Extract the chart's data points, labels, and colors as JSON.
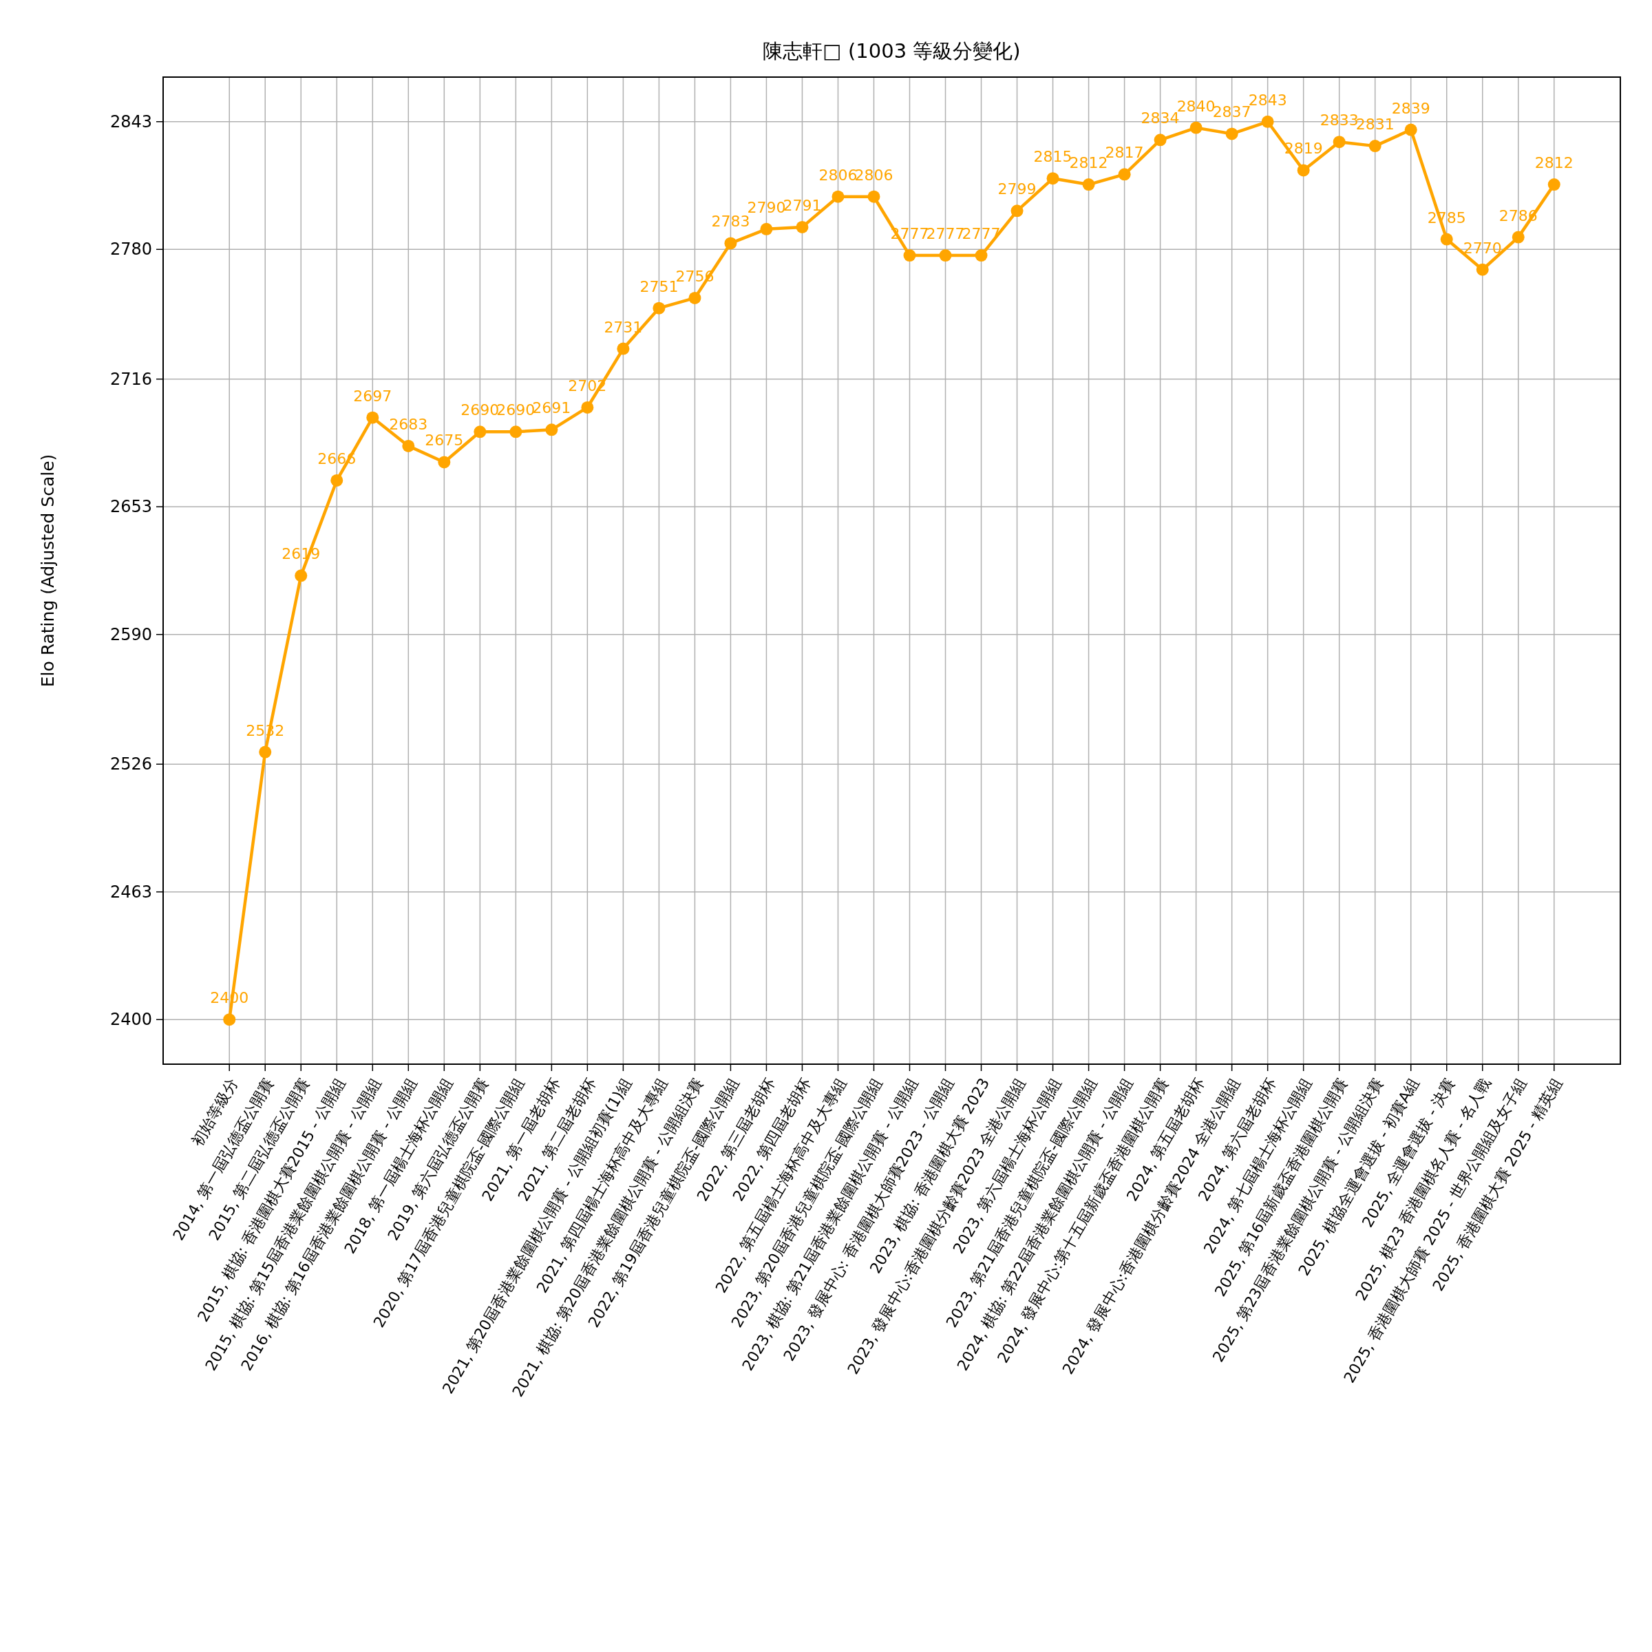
{
  "chart_data": {
    "type": "line",
    "title": "陳志軒□ (1003 等級分變化)",
    "ylabel": "Elo Rating (Adjusted Scale)",
    "categories": [
      "初始等級分",
      "2014, 第一屆弘德盃公開賽",
      "2015, 第二屆弘德盃公開賽",
      "2015, 棋協: 香港圍棋大賽2015 - 公開組",
      "2015, 棋協: 第15屆香港業餘圍棋公開賽 - 公開組",
      "2016, 棋協: 第16屆香港業餘圍棋公開賽 - 公開組",
      "2018, 第一屆楊士海杯公開組",
      "2019, 第六屆弘德盃公開賽",
      "2020, 第17屆香港兒童棋院盃-國際公開組",
      "2021, 第一屆老胡杯",
      "2021, 第二屆老胡杯",
      "2021, 第20屆香港業餘圍棋公開賽 - 公開組初賽(1)組",
      "2021, 第四屆楊士海杯高中及大專組",
      "2021, 棋協: 第20屆香港業餘圍棋公開賽 - 公開組決賽",
      "2022, 第19屆香港兒童棋院盃-國際公開組",
      "2022, 第三屆老胡杯",
      "2022, 第四屆老胡杯",
      "2022, 第五屆楊士海杯高中及大專組",
      "2023, 第20屆香港兒童棋院盃-國際公開組",
      "2023, 棋協: 第21屆香港業餘圍棋公開賽 - 公開組",
      "2023, 發展中心: 香港圍棋大師賽2023 - 公開組",
      "2023, 棋協: 香港圍棋大賽 2023",
      "2023, 發展中心:香港圍棋分齡賽2023 全港公開組",
      "2023, 第六屆楊士海杯公開組",
      "2023, 第21屆香港兒童棋院盃-國際公開組",
      "2024, 棋協: 第22屆香港業餘圍棋公開賽 - 公開組",
      "2024, 發展中心:第十五屆新歲盃香港圍棋公開賽",
      "2024, 第五屆老胡杯",
      "2024, 發展中心:香港圍棋分齡賽2024 全港公開組",
      "2024, 第六屆老胡杯",
      "2024, 第七屆楊士海杯公開組",
      "2025, 第16屆新歲盃香港圍棋公開賽",
      "2025, 第23屆香港業餘圍棋公開賽 - 公開組決賽",
      "2025, 棋協全運會選拔 - 初賽A組",
      "2025, 全運會選拔 - 決賽",
      "2025, 棋23  香港圍棋名人賽 - 名人戰",
      "2025, 香港圍棋大師賽 2025 - 世界公開組及女子組",
      "2025, 香港圍棋大賽 2025 - 精英組"
    ],
    "series": [
      {
        "color": "#ffa500",
        "values": [
          2400,
          2532,
          2619,
          2666,
          2697,
          2683,
          2675,
          2690,
          2690,
          2691,
          2702,
          2731,
          2751,
          2756,
          2783,
          2790,
          2791,
          2806,
          2806,
          2777,
          2777,
          2777,
          2799,
          2815,
          2812,
          2817,
          2834,
          2840,
          2837,
          2843,
          2819,
          2833,
          2831,
          2839,
          2785,
          2770,
          2786,
          2812
        ]
      }
    ],
    "ylim": [
      2378,
      2865
    ],
    "yticks": [
      2400,
      2463,
      2526,
      2590,
      2653,
      2716,
      2780,
      2843
    ],
    "grid": true,
    "marker": "circle",
    "line_style": "solid",
    "data_labels": true
  }
}
